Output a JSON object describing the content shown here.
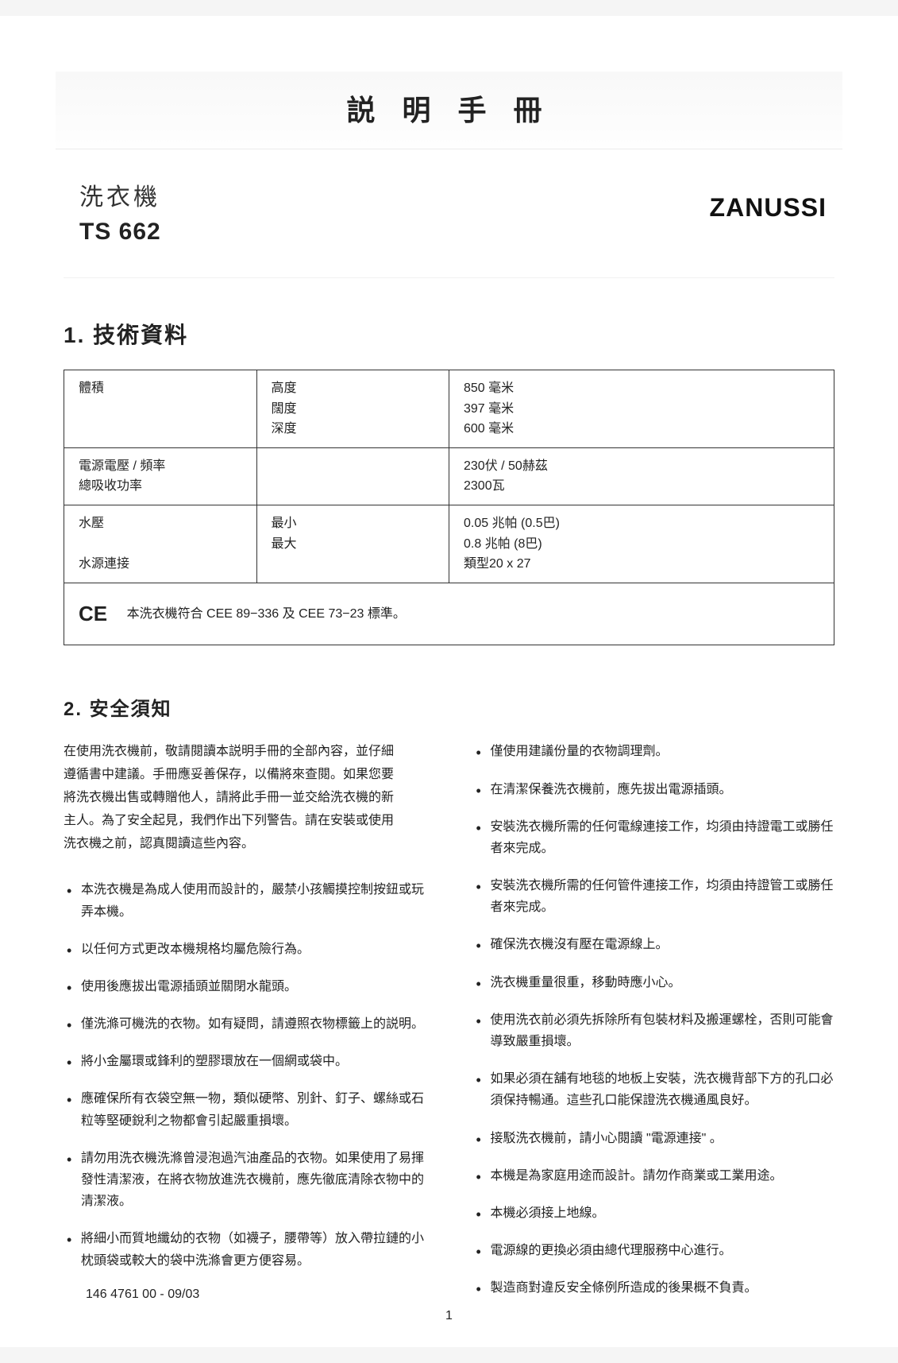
{
  "header": {
    "title": "説 明 手 冊"
  },
  "product": {
    "name": "洗衣機",
    "model": "TS 662"
  },
  "brand": "ZANUSSI",
  "section1": {
    "title": "1. 技術資料",
    "table": {
      "rows": [
        {
          "label": "體積",
          "param": "高度\n闊度\n深度",
          "value": "850 毫米\n397 毫米\n600 毫米"
        },
        {
          "label": "電源電壓 / 頻率\n總吸收功率",
          "param": "",
          "value": "230伏 / 50赫茲\n2300瓦"
        },
        {
          "label": "水壓\n\n水源連接",
          "param": "最小\n最大",
          "value": "0.05 兆帕 (0.5巴)\n0.8 兆帕 (8巴)\n類型20 x 27"
        }
      ],
      "ce_mark": "CE",
      "ce_text": "本洗衣機符合 CEE 89−336 及 CEE 73−23 標準。"
    }
  },
  "section2": {
    "title": "2. 安全須知",
    "intro": "在使用洗衣機前，敬請閱讀本説明手冊的全部內容，並仔細遵循書中建議。手冊應妥善保存，以備將來查閱。如果您要將洗衣機出售或轉贈他人，請將此手冊一並交給洗衣機的新主人。為了安全起見，我們作出下列警告。請在安裝或使用洗衣機之前，認真閱讀這些內容。",
    "left": [
      "本洗衣機是為成人使用而設計的，嚴禁小孩觸摸控制按鈕或玩弄本機。",
      "以任何方式更改本機規格均屬危險行為。",
      "使用後應拔出電源插頭並關閉水龍頭。",
      "僅洗滌可機洗的衣物。如有疑問，請遵照衣物標籤上的説明。",
      "將小金屬環或鋒利的塑膠環放在一個網或袋中。",
      "應確保所有衣袋空無一物，類似硬幣、別針、釘子、螺絲或石粒等堅硬銳利之物都會引起嚴重損壞。",
      "請勿用洗衣機洗滌曾浸泡過汽油產品的衣物。如果使用了易揮發性清潔液，在將衣物放進洗衣機前，應先徹底清除衣物中的清潔液。",
      "將細小而質地纖幼的衣物（如襪子，腰帶等）放入帶拉鏈的小枕頭袋或較大的袋中洗滌會更方便容易。"
    ],
    "right": [
      "僅使用建議份量的衣物調理劑。",
      "在清潔保養洗衣機前，應先拔出電源插頭。",
      "安裝洗衣機所需的任何電線連接工作，均須由持證電工或勝任者來完成。",
      "安裝洗衣機所需的任何管件連接工作，均須由持證管工或勝任者來完成。",
      "確保洗衣機沒有壓在電源線上。",
      "洗衣機重量很重，移動時應小心。",
      "使用洗衣前必須先拆除所有包裝材料及搬運螺栓，否則可能會導致嚴重損壞。",
      "如果必須在舖有地毯的地板上安裝，洗衣機背部下方的孔口必須保持暢通。這些孔口能保證洗衣機通風良好。",
      "接駁洗衣機前，請小心閱讀 \"電源連接\" 。",
      "本機是為家庭用途而設計。請勿作商業或工業用途。",
      "本機必須接上地線。",
      "電源線的更換必須由總代理服務中心進行。",
      "製造商對違反安全條例所造成的後果概不負責。"
    ]
  },
  "footer": {
    "code": "146 4761 00 - 09/03",
    "page": "1"
  }
}
